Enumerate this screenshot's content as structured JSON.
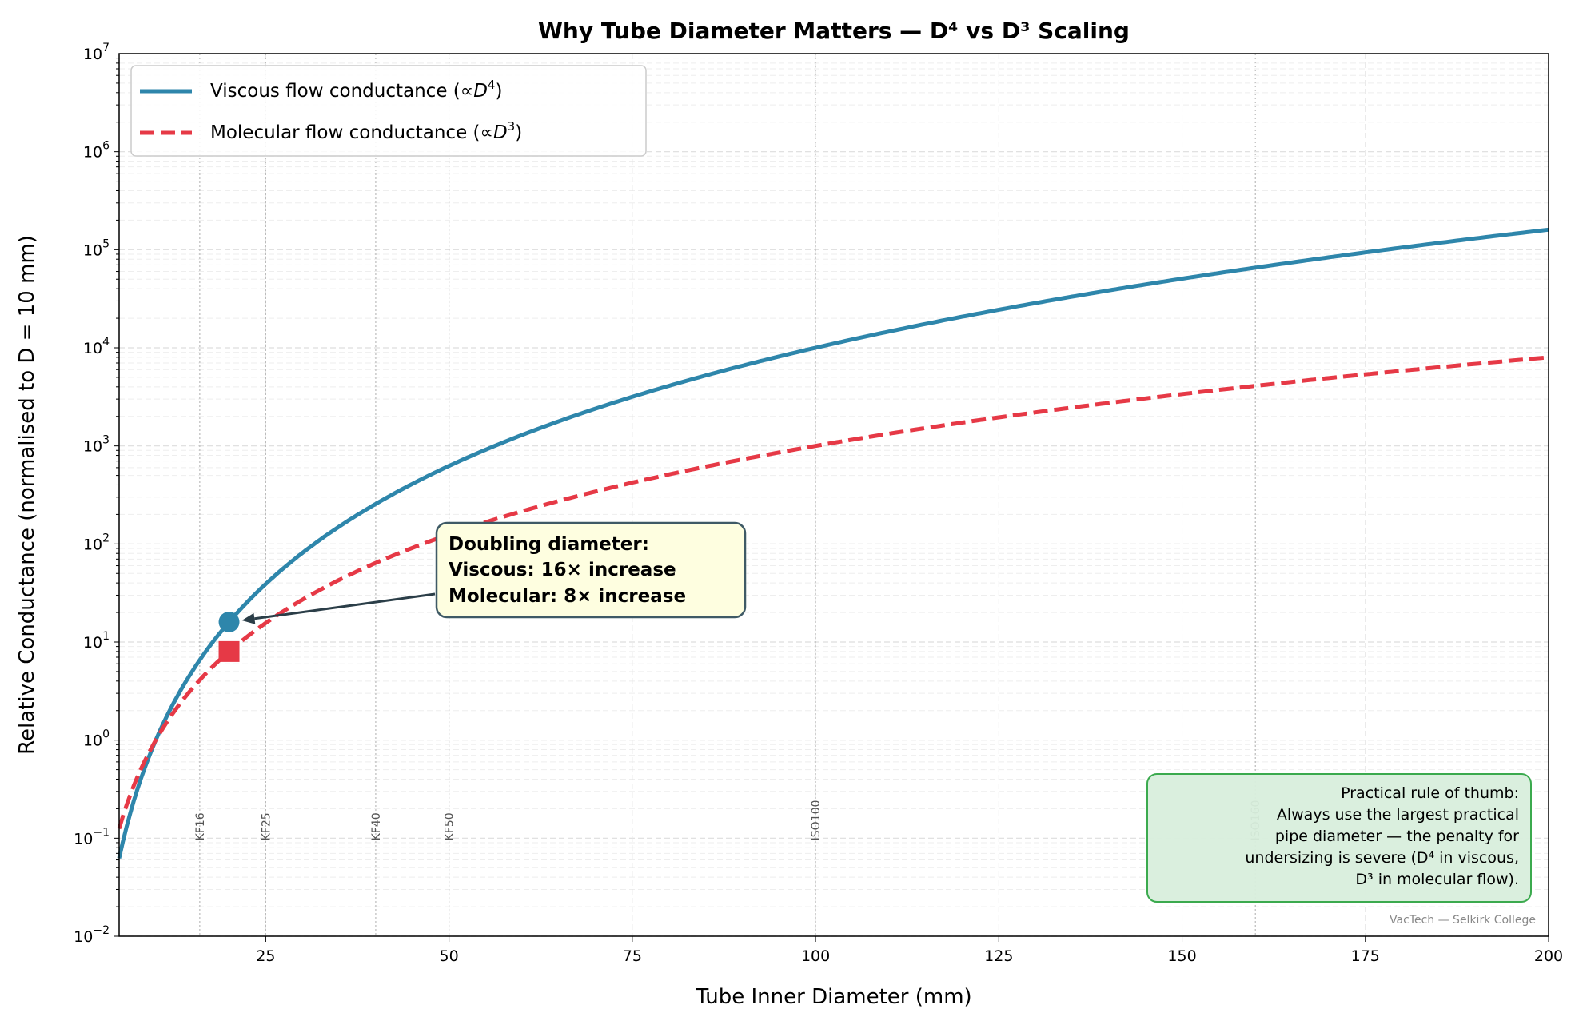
{
  "chart_data": {
    "type": "line",
    "title": "Why Tube Diameter Matters — D⁴ vs D³ Scaling",
    "xlabel": "Tube Inner Diameter (mm)",
    "ylabel": "Relative Conductance (normalised to D = 10 mm)",
    "xlim": [
      5,
      200
    ],
    "ylim": [
      0.01,
      10000000
    ],
    "yscale": "log",
    "grid": true,
    "x_ticks": [
      "25",
      "50",
      "75",
      "100",
      "125",
      "150",
      "175",
      "200"
    ],
    "x_tick_values": [
      25,
      50,
      75,
      100,
      125,
      150,
      175,
      200
    ],
    "y_tick_exponents": [
      "-2",
      "-1",
      "0",
      "1",
      "2",
      "3",
      "4",
      "5",
      "6",
      "7"
    ],
    "legend_position": "top-left",
    "series": [
      {
        "name": "Viscous flow conductance (∝D⁴)",
        "legend_main": "Viscous flow conductance (",
        "legend_sym": "∝",
        "legend_var": "D",
        "legend_exp": "4",
        "legend_close": ")",
        "formula": "(D/10)^4",
        "color": "#2E86AB",
        "style": "solid"
      },
      {
        "name": "Molecular flow conductance (∝D³)",
        "legend_main": "Molecular flow conductance (",
        "legend_sym": "∝",
        "legend_var": "D",
        "legend_exp": "3",
        "legend_close": ")",
        "formula": "(D/10)^3",
        "color": "#E63946",
        "style": "dashed"
      }
    ],
    "markers": [
      {
        "series": "viscous",
        "x": 20,
        "y": 16,
        "shape": "circle",
        "color": "#2E86AB"
      },
      {
        "series": "molecular",
        "x": 20,
        "y": 8,
        "shape": "square",
        "color": "#E63946"
      }
    ],
    "flanges": [
      {
        "label": "KF16",
        "x": 16
      },
      {
        "label": "KF25",
        "x": 25
      },
      {
        "label": "KF40",
        "x": 40
      },
      {
        "label": "KF50",
        "x": 50
      },
      {
        "label": "ISO100",
        "x": 100
      },
      {
        "label": "ISO160",
        "x": 160
      }
    ],
    "annotation": {
      "lines": [
        "Doubling diameter:",
        "Viscous: 16× increase",
        "Molecular: 8× increase"
      ],
      "points_to": {
        "x": 20,
        "y": 16
      },
      "bg": "#FEFEE0",
      "border": "#2B4A5A"
    },
    "note": {
      "lines": [
        "Practical rule of thumb:",
        "Always use the largest practical",
        "pipe diameter — the penalty for",
        "undersizing is severe (D⁴ in viscous,",
        "D³ in molecular flow)."
      ],
      "bg": "#D8EEDC",
      "border": "#3BAA4E"
    },
    "credit": "VacTech — Selkirk College"
  }
}
